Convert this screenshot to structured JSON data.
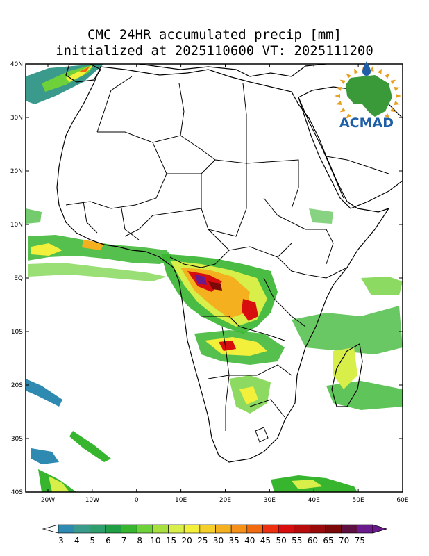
{
  "title_line1": "CMC 24HR accumulated precip [mm]",
  "title_line2": "initialized at 2025110600 VT: 2025111200",
  "logo": {
    "text": "ACMAD",
    "text_color": "#1f5fa8",
    "map_color": "#3a9a3a",
    "sun_color": "#e8a020"
  },
  "lat_labels": [
    "40N",
    "30N",
    "20N",
    "10N",
    "EQ",
    "10S",
    "20S",
    "30S",
    "40S"
  ],
  "lon_labels": [
    "20W",
    "10W",
    "0",
    "10E",
    "20E",
    "30E",
    "40E",
    "50E",
    "60E"
  ],
  "colorbar": {
    "labels": [
      "3",
      "4",
      "5",
      "6",
      "7",
      "8",
      "10",
      "15",
      "20",
      "25",
      "30",
      "35",
      "40",
      "45",
      "50",
      "55",
      "60",
      "65",
      "70",
      "75"
    ],
    "colors": [
      "#2e8ab0",
      "#3a9a8c",
      "#2f9e6e",
      "#1f9e45",
      "#37b52f",
      "#6fd13a",
      "#a8e040",
      "#d8ef4a",
      "#f2f03a",
      "#f5d02a",
      "#f5b020",
      "#f59018",
      "#f26a10",
      "#ec3010",
      "#d80e0e",
      "#b80c0c",
      "#9a0a0a",
      "#7c0808",
      "#5e1040",
      "#6a1a8a"
    ],
    "under_color": "#ffffff",
    "over_color": "#6a1a8a"
  }
}
